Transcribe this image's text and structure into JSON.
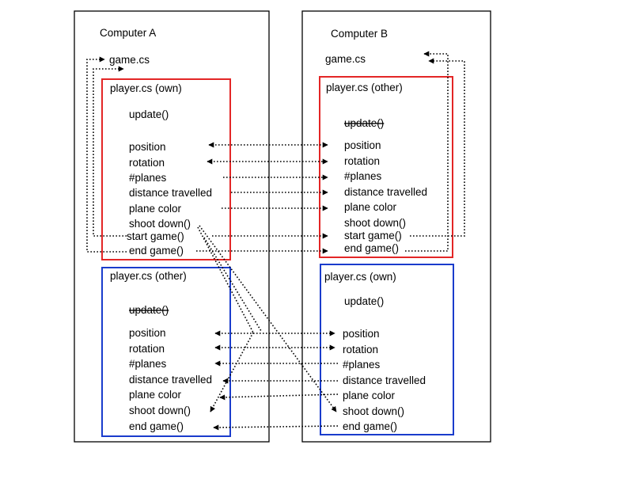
{
  "computer_a": {
    "title": "Computer A",
    "game_file": "game.cs",
    "own_player": {
      "header": "player.cs  (own)",
      "update": "update()",
      "items": [
        "position",
        "rotation",
        "#planes",
        "distance travelled",
        "plane color",
        "shoot down()",
        "start game()",
        "end game()"
      ],
      "border_color": "#e32626"
    },
    "other_player": {
      "header": "player.cs  (other)",
      "update": "update()",
      "items": [
        "position",
        "rotation",
        "#planes",
        "distance travelled",
        "plane color",
        "shoot down()",
        "end game()"
      ],
      "border_color": "#1a3ccc"
    }
  },
  "computer_b": {
    "title": "Computer B",
    "game_file": "game.cs",
    "other_player": {
      "header": "player.cs  (other)",
      "update": "update()",
      "items": [
        "position",
        "rotation",
        "#planes",
        "distance travelled",
        "plane color",
        "shoot down()",
        "start game()",
        "end game()"
      ],
      "border_color": "#e32626"
    },
    "own_player": {
      "header": "player.cs  (own)",
      "update": "update()",
      "items": [
        "position",
        "rotation",
        "#planes",
        "distance travelled",
        "plane color",
        "shoot down()",
        "end game()"
      ],
      "border_color": "#1a3ccc"
    }
  },
  "line_color": "#000000"
}
